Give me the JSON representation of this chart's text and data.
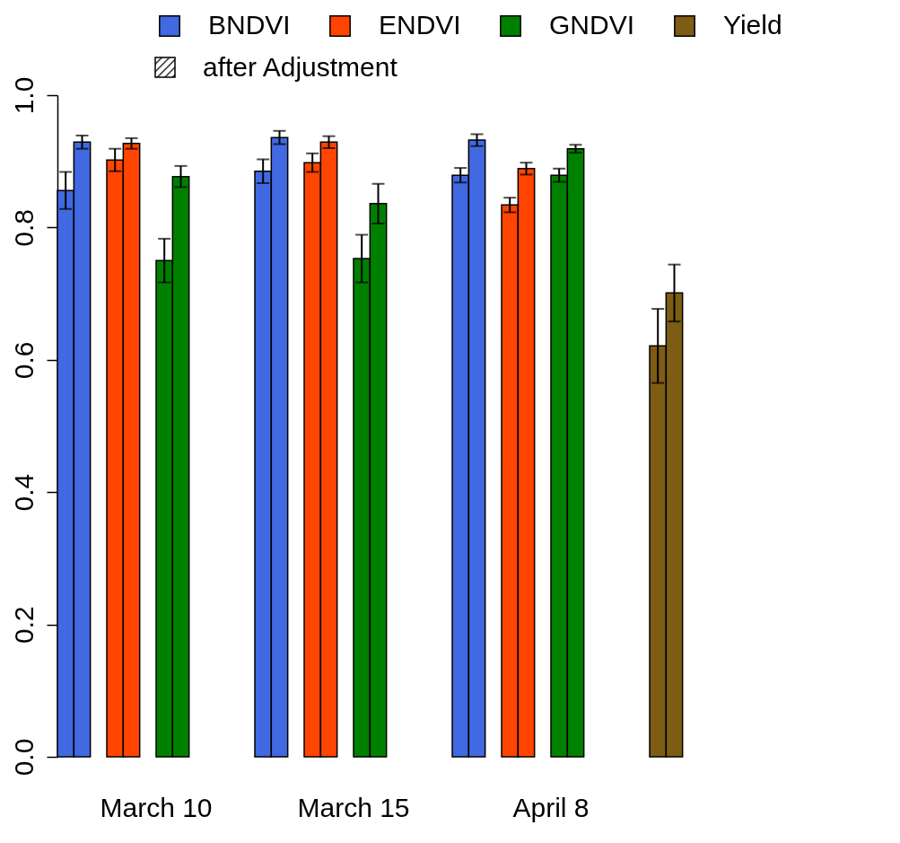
{
  "chart_data": {
    "type": "bar",
    "categories": [
      "March 10",
      "March 15",
      "April 8",
      null
    ],
    "series": [
      {
        "name": "BNDVI",
        "color": "#4169e1",
        "values": [
          0.856,
          0.885,
          0.879,
          null
        ],
        "errors": [
          0.028,
          0.018,
          0.011,
          null
        ]
      },
      {
        "color": "#4169e1",
        "values": [
          0.929,
          0.936,
          0.932,
          null
        ],
        "errors": [
          0.01,
          0.01,
          0.009,
          null
        ]
      },
      {
        "name": "ENDVI",
        "color": "#ff4500",
        "values": [
          0.902,
          0.898,
          0.834,
          null
        ],
        "errors": [
          0.017,
          0.014,
          0.011,
          null
        ]
      },
      {
        "color": "#ff4500",
        "values": [
          0.927,
          0.929,
          0.889,
          null
        ],
        "errors": [
          0.008,
          0.009,
          0.009,
          null
        ]
      },
      {
        "name": "GNDVI",
        "color": "#008000",
        "values": [
          0.75,
          0.753,
          0.879,
          null
        ],
        "errors": [
          0.033,
          0.036,
          0.01,
          null
        ]
      },
      {
        "color": "#008000",
        "values": [
          0.877,
          0.836,
          0.919,
          null
        ],
        "errors": [
          0.016,
          0.03,
          0.006,
          null
        ]
      },
      {
        "name": "Yield",
        "color": "#7d5c14",
        "values": [
          null,
          null,
          null,
          0.621
        ],
        "errors": [
          null,
          null,
          null,
          0.056
        ]
      },
      {
        "color": "#7d5c14",
        "values": [
          null,
          null,
          null,
          0.701
        ],
        "errors": [
          null,
          null,
          null,
          0.043
        ]
      }
    ],
    "annotations": [
      "after Adjustment"
    ],
    "ylim": [
      0,
      1
    ],
    "yticks": [
      {
        "value": 0,
        "label": "0.0"
      },
      {
        "value": 0.2,
        "label": "0.2"
      },
      {
        "value": 0.4,
        "label": "0.4"
      },
      {
        "value": 0.6,
        "label": "0.6"
      },
      {
        "value": 0.8,
        "label": "0.8"
      },
      {
        "value": 1,
        "label": "1.0"
      }
    ],
    "grid": false,
    "legend": "top"
  }
}
